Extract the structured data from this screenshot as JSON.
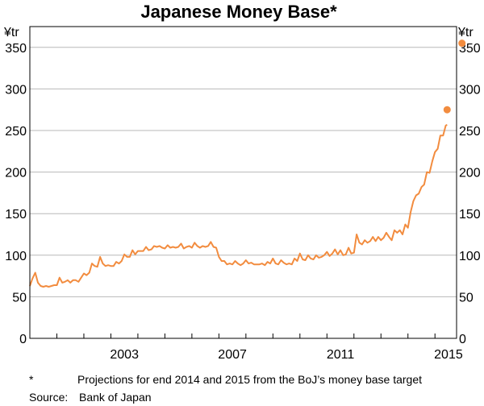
{
  "chart_data": {
    "type": "line",
    "title": "Japanese Money Base*",
    "y_unit_left": "¥tr",
    "y_unit_right": "¥tr",
    "ylim": [
      0,
      375
    ],
    "yticks": [
      0,
      50,
      100,
      150,
      200,
      250,
      300,
      350
    ],
    "xlim": [
      2000.0,
      2015.8
    ],
    "xtick_labels": [
      {
        "x": 2003,
        "label": "2003"
      },
      {
        "x": 2007,
        "label": "2007"
      },
      {
        "x": 2011,
        "label": "2011"
      },
      {
        "x": 2015,
        "label": "2015"
      }
    ],
    "grid": true,
    "series": [
      {
        "color": "#f28c3f",
        "points": [
          [
            2000.0,
            63
          ],
          [
            2000.1,
            72
          ],
          [
            2000.2,
            79
          ],
          [
            2000.3,
            67
          ],
          [
            2000.4,
            63
          ],
          [
            2000.5,
            62
          ],
          [
            2000.6,
            63
          ],
          [
            2000.7,
            62
          ],
          [
            2000.8,
            63
          ],
          [
            2000.9,
            64
          ],
          [
            2001.0,
            64
          ],
          [
            2001.1,
            73
          ],
          [
            2001.2,
            67
          ],
          [
            2001.3,
            68
          ],
          [
            2001.4,
            70
          ],
          [
            2001.5,
            67
          ],
          [
            2001.6,
            70
          ],
          [
            2001.7,
            70
          ],
          [
            2001.8,
            68
          ],
          [
            2001.9,
            73
          ],
          [
            2002.0,
            78
          ],
          [
            2002.1,
            76
          ],
          [
            2002.2,
            79
          ],
          [
            2002.3,
            90
          ],
          [
            2002.4,
            87
          ],
          [
            2002.5,
            86
          ],
          [
            2002.6,
            98
          ],
          [
            2002.7,
            90
          ],
          [
            2002.8,
            87
          ],
          [
            2002.9,
            88
          ],
          [
            2003.0,
            87
          ],
          [
            2003.1,
            87
          ],
          [
            2003.2,
            92
          ],
          [
            2003.3,
            90
          ],
          [
            2003.4,
            93
          ],
          [
            2003.5,
            101
          ],
          [
            2003.6,
            98
          ],
          [
            2003.7,
            98
          ],
          [
            2003.8,
            106
          ],
          [
            2003.9,
            101
          ],
          [
            2004.0,
            105
          ],
          [
            2004.1,
            105
          ],
          [
            2004.2,
            105
          ],
          [
            2004.3,
            110
          ],
          [
            2004.4,
            106
          ],
          [
            2004.5,
            107
          ],
          [
            2004.6,
            111
          ],
          [
            2004.7,
            110
          ],
          [
            2004.8,
            111
          ],
          [
            2004.9,
            109
          ],
          [
            2005.0,
            108
          ],
          [
            2005.1,
            112
          ],
          [
            2005.2,
            109
          ],
          [
            2005.3,
            110
          ],
          [
            2005.4,
            109
          ],
          [
            2005.5,
            110
          ],
          [
            2005.6,
            114
          ],
          [
            2005.7,
            108
          ],
          [
            2005.8,
            110
          ],
          [
            2005.9,
            111
          ],
          [
            2006.0,
            109
          ],
          [
            2006.1,
            115
          ],
          [
            2006.2,
            111
          ],
          [
            2006.3,
            109
          ],
          [
            2006.4,
            111
          ],
          [
            2006.5,
            110
          ],
          [
            2006.6,
            111
          ],
          [
            2006.7,
            116
          ],
          [
            2006.8,
            110
          ],
          [
            2006.9,
            109
          ],
          [
            2007.0,
            98
          ],
          [
            2007.1,
            93
          ],
          [
            2007.2,
            93
          ],
          [
            2007.3,
            89
          ],
          [
            2007.4,
            90
          ],
          [
            2007.5,
            89
          ],
          [
            2007.6,
            93
          ],
          [
            2007.7,
            90
          ],
          [
            2007.8,
            88
          ],
          [
            2007.9,
            90
          ],
          [
            2008.0,
            94
          ],
          [
            2008.1,
            90
          ],
          [
            2008.2,
            91
          ],
          [
            2008.3,
            89
          ],
          [
            2008.4,
            89
          ],
          [
            2008.5,
            89
          ],
          [
            2008.6,
            90
          ],
          [
            2008.7,
            88
          ],
          [
            2008.8,
            92
          ],
          [
            2008.9,
            90
          ],
          [
            2009.0,
            96
          ],
          [
            2009.1,
            90
          ],
          [
            2009.2,
            89
          ],
          [
            2009.3,
            94
          ],
          [
            2009.4,
            91
          ],
          [
            2009.5,
            89
          ],
          [
            2009.6,
            90
          ],
          [
            2009.7,
            89
          ],
          [
            2009.8,
            96
          ],
          [
            2009.9,
            93
          ],
          [
            2010.0,
            102
          ],
          [
            2010.1,
            95
          ],
          [
            2010.2,
            94
          ],
          [
            2010.3,
            100
          ],
          [
            2010.4,
            96
          ],
          [
            2010.5,
            95
          ],
          [
            2010.6,
            100
          ],
          [
            2010.7,
            97
          ],
          [
            2010.8,
            98
          ],
          [
            2010.9,
            100
          ],
          [
            2011.0,
            104
          ],
          [
            2011.1,
            99
          ],
          [
            2011.2,
            102
          ],
          [
            2011.3,
            107
          ],
          [
            2011.4,
            101
          ],
          [
            2011.5,
            106
          ],
          [
            2011.6,
            100
          ],
          [
            2011.7,
            101
          ],
          [
            2011.8,
            109
          ],
          [
            2011.9,
            102
          ],
          [
            2012.0,
            103
          ],
          [
            2012.1,
            125
          ],
          [
            2012.2,
            115
          ],
          [
            2012.3,
            113
          ],
          [
            2012.4,
            118
          ],
          [
            2012.5,
            115
          ],
          [
            2012.6,
            117
          ],
          [
            2012.7,
            122
          ],
          [
            2012.8,
            117
          ],
          [
            2012.9,
            122
          ],
          [
            2013.0,
            118
          ],
          [
            2013.1,
            121
          ],
          [
            2013.2,
            127
          ],
          [
            2013.3,
            122
          ],
          [
            2013.4,
            118
          ],
          [
            2013.5,
            130
          ],
          [
            2013.6,
            127
          ],
          [
            2013.7,
            130
          ],
          [
            2013.8,
            125
          ],
          [
            2013.9,
            137
          ],
          [
            2014.0,
            133
          ],
          [
            2014.1,
            152
          ],
          [
            2014.2,
            165
          ],
          [
            2014.3,
            172
          ],
          [
            2014.4,
            174
          ],
          [
            2014.5,
            182
          ],
          [
            2014.6,
            185
          ],
          [
            2014.7,
            200
          ],
          [
            2014.8,
            199
          ],
          [
            2014.9,
            213
          ],
          [
            2015.0,
            224
          ],
          [
            2015.1,
            228
          ],
          [
            2015.2,
            244
          ],
          [
            2015.3,
            244
          ],
          [
            2015.4,
            256
          ],
          [
            2015.45,
            257
          ]
        ]
      }
    ],
    "projections": [
      {
        "x": 2015.45,
        "y": 275
      },
      {
        "x": 2016.0,
        "y": 355
      }
    ],
    "notes": {
      "footnote_mark": "*",
      "footnote_text": "Projections for end 2014 and 2015 from the BoJ’s money base target",
      "source_label": "Source:",
      "source_text": "Bank of Japan"
    }
  }
}
